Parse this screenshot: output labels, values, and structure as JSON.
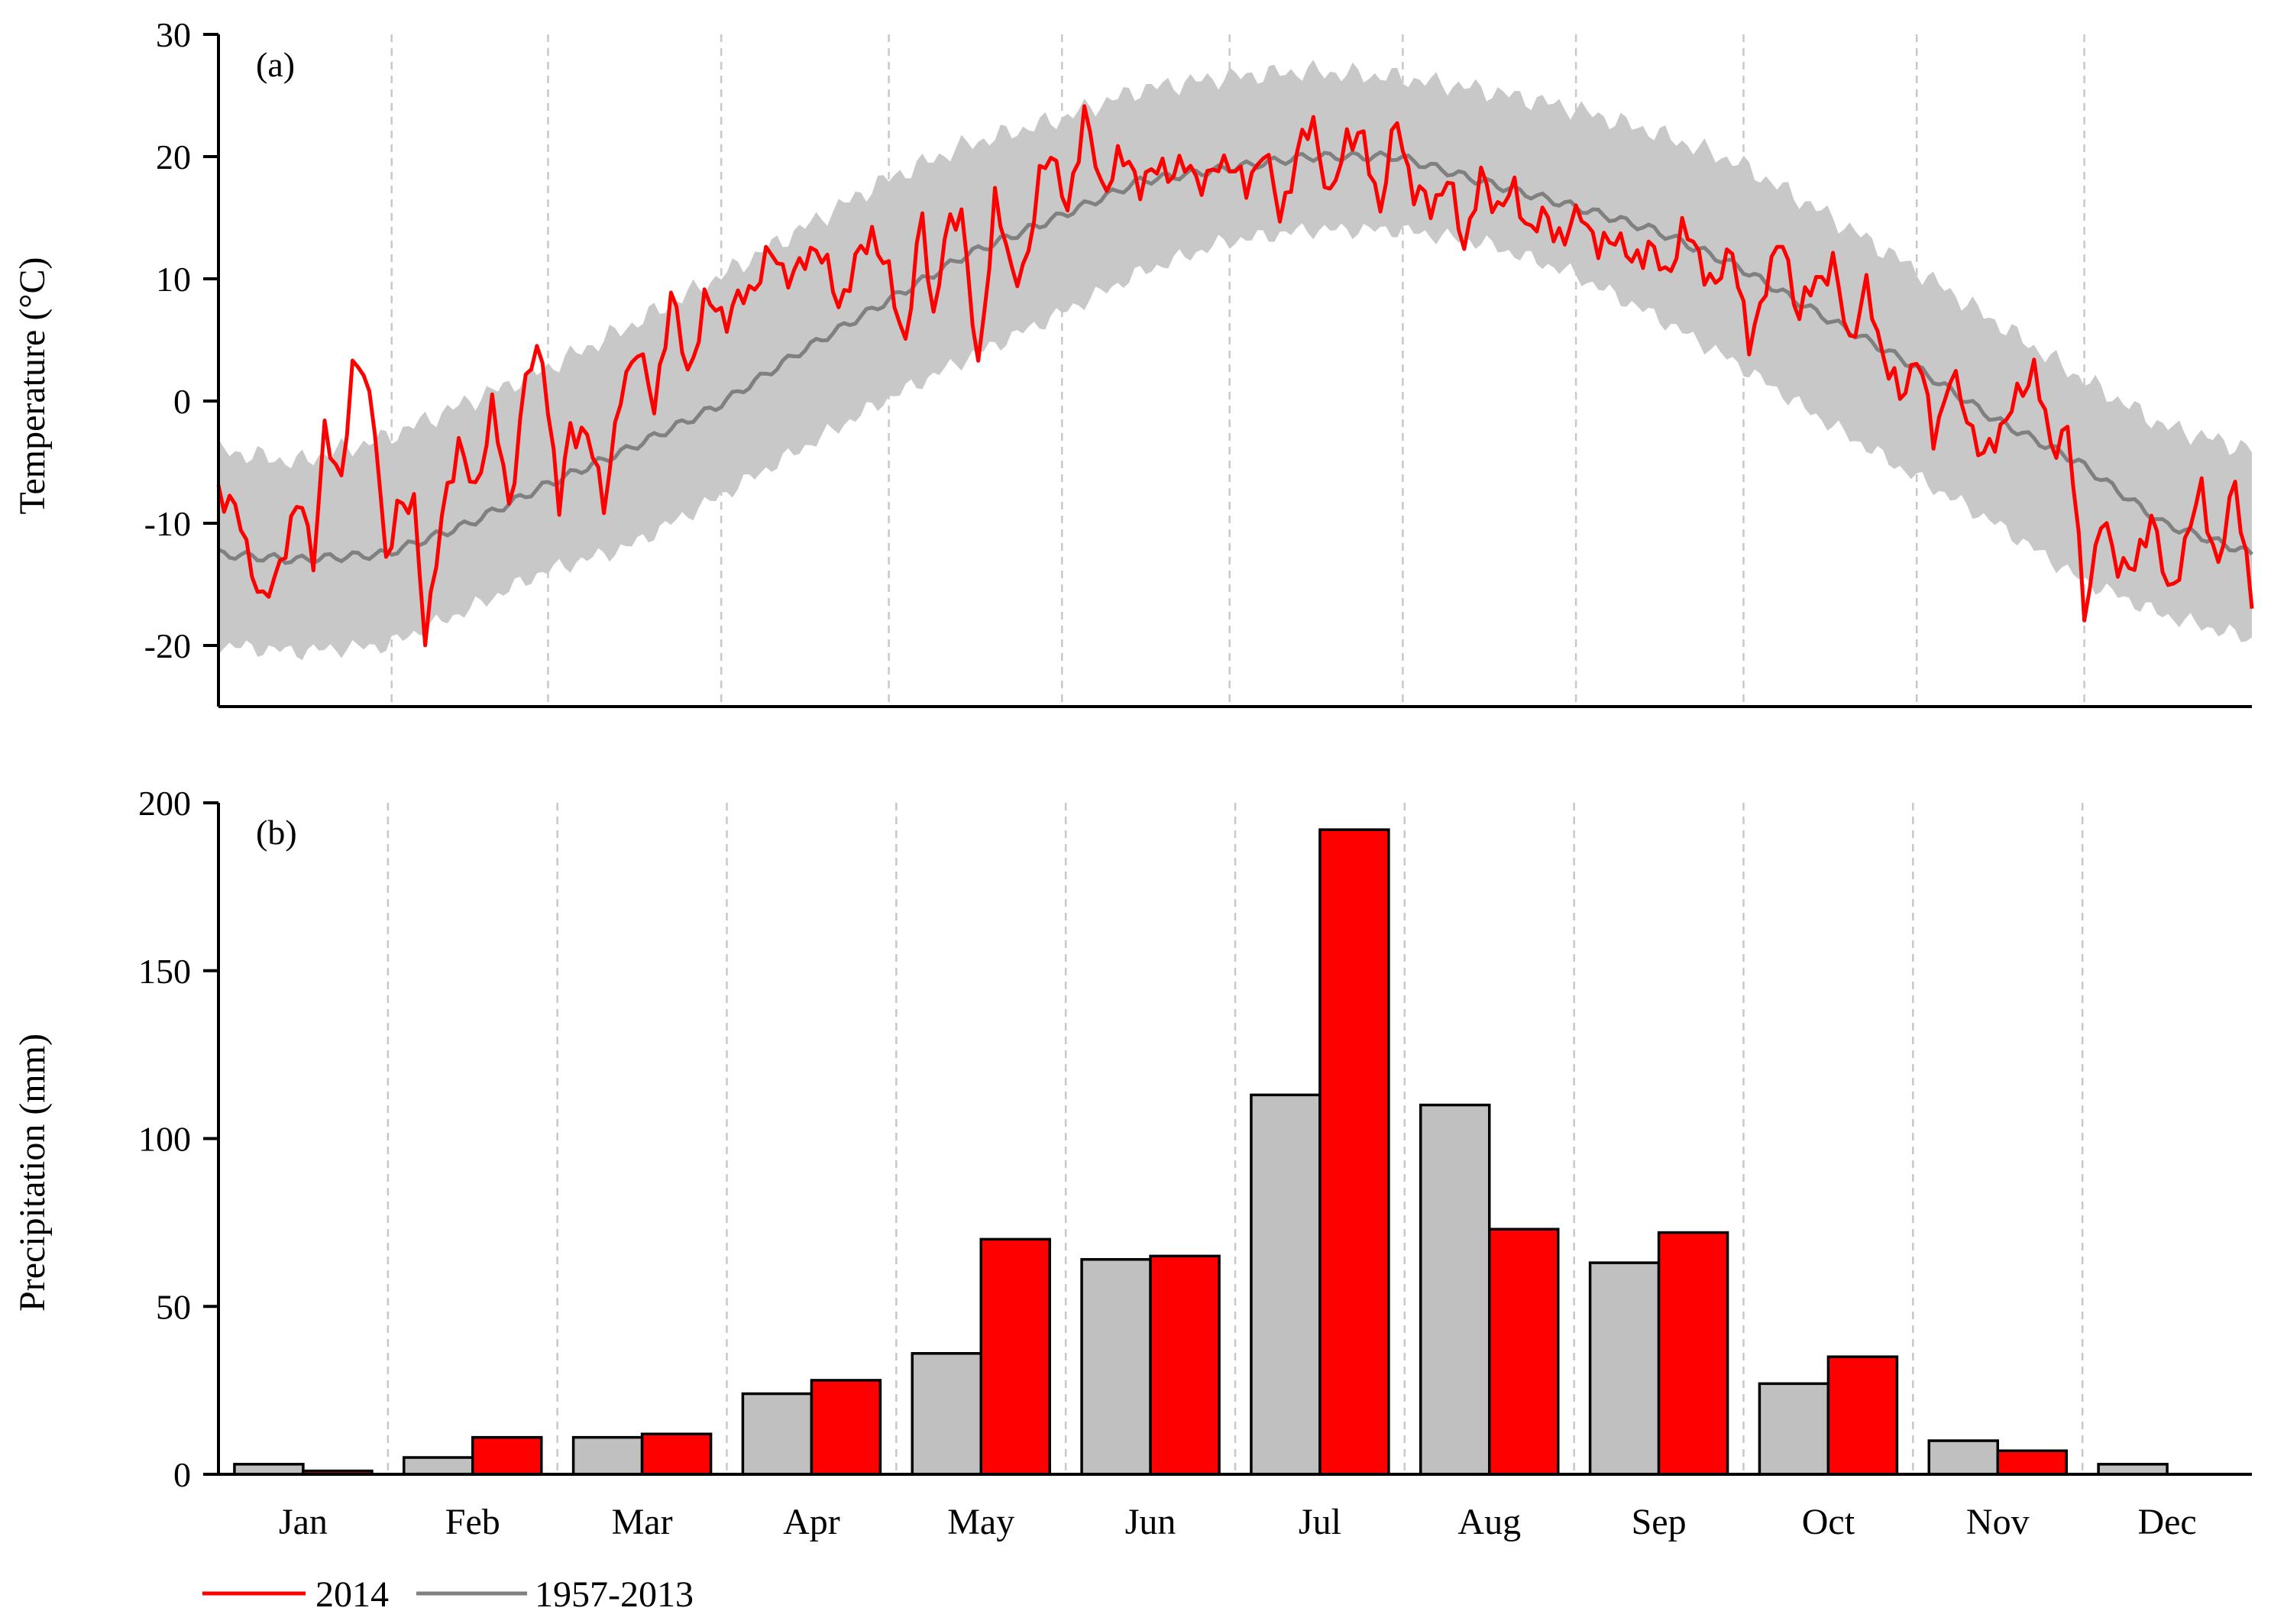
{
  "legend": [
    {
      "name": "2014",
      "color": "#ff0000"
    },
    {
      "name": "1957-2013",
      "color": "#808080"
    }
  ],
  "chart_data": [
    {
      "type": "line",
      "panel_label": "(a)",
      "title": "",
      "xlabel": "",
      "ylabel": "Temperature (°C)",
      "ylim": [
        -25,
        30
      ],
      "yticks": [
        -20,
        -10,
        0,
        10,
        20,
        30
      ],
      "xlim": [
        1,
        365
      ],
      "month_boundaries": [
        32,
        60,
        91,
        121,
        152,
        182,
        213,
        244,
        274,
        305,
        335
      ],
      "colors": {
        "band": "#c8c8c8",
        "mean": "#808080",
        "year": "#ff0000"
      },
      "climatology_anchors": {
        "description": "Daily mean 1957-2013 with shaded range (min-max)",
        "day": [
          1,
          15,
          31,
          46,
          59,
          74,
          90,
          105,
          120,
          135,
          151,
          166,
          181,
          196,
          212,
          227,
          243,
          258,
          273,
          288,
          304,
          319,
          334,
          349,
          365
        ],
        "mean": [
          -12.5,
          -13,
          -12.5,
          -10,
          -7,
          -4,
          -0.5,
          4,
          8,
          12,
          15,
          18,
          19,
          20,
          20,
          18,
          16,
          14,
          11,
          7,
          3,
          -1.5,
          -5,
          -10,
          -12.5
        ],
        "upper": [
          -4,
          -5,
          -3,
          0,
          2.5,
          6,
          10,
          14,
          18,
          21,
          23,
          25.5,
          26.5,
          27,
          26.5,
          25.5,
          24,
          22,
          19.5,
          15.5,
          11,
          6.5,
          2,
          -2,
          -4
        ],
        "lower": [
          -20,
          -20.5,
          -20,
          -17,
          -14,
          -12,
          -8,
          -4,
          0,
          3.5,
          7,
          10.5,
          13,
          14,
          14,
          13,
          10.5,
          7,
          3,
          -1.5,
          -6,
          -10,
          -14.5,
          -17.5,
          -19.5
        ]
      },
      "series_2014": {
        "name": "2014",
        "day": [
          1,
          5,
          9,
          12,
          16,
          18,
          20,
          23,
          25,
          27,
          29,
          31,
          33,
          36,
          38,
          41,
          44,
          47,
          50,
          53,
          56,
          59,
          62,
          64,
          67,
          70,
          73,
          76,
          79,
          82,
          85,
          88,
          92,
          96,
          100,
          104,
          108,
          112,
          115,
          118,
          121,
          124,
          127,
          129,
          131,
          134,
          137,
          140,
          143,
          146,
          148,
          150,
          153,
          156,
          159,
          162,
          166,
          170,
          174,
          178,
          182,
          185,
          188,
          191,
          194,
          197,
          200,
          203,
          206,
          209,
          212,
          215,
          218,
          221,
          224,
          227,
          230,
          233,
          236,
          239,
          242,
          245,
          248,
          251,
          254,
          257,
          260,
          263,
          266,
          269,
          272,
          275,
          278,
          281,
          284,
          287,
          290,
          293,
          296,
          299,
          302,
          305,
          308,
          311,
          314,
          317,
          320,
          323,
          326,
          329,
          332,
          335,
          338,
          341,
          344,
          347,
          350,
          353,
          356,
          359,
          362,
          365
        ],
        "values": [
          -7,
          -10,
          -17,
          -13,
          -8,
          -13,
          -3,
          -6,
          2,
          3,
          -2,
          -14,
          -8,
          -9,
          -19,
          -10,
          -3,
          -8,
          0,
          -9,
          2,
          4,
          -9,
          -2,
          -3,
          -8,
          0,
          5,
          -1,
          9,
          2,
          8,
          7,
          9,
          12,
          10,
          13,
          8,
          11,
          14,
          10,
          5,
          15,
          7,
          13,
          16,
          2,
          17,
          10,
          12,
          18,
          21,
          15,
          24,
          17,
          20,
          18,
          19,
          19,
          18,
          20,
          17,
          21,
          15,
          20,
          23,
          16,
          22,
          21,
          16,
          23,
          17,
          16,
          18,
          13,
          18,
          16,
          17,
          14,
          15,
          13,
          16,
          12,
          14,
          11,
          13,
          10,
          14,
          12,
          9,
          13,
          4,
          10,
          13,
          7,
          10,
          11,
          5,
          9,
          4,
          0,
          4,
          -3,
          2,
          -1,
          -5,
          -2,
          0,
          3,
          -4,
          -2,
          -17,
          -10,
          -13,
          -14,
          -9,
          -16,
          -12,
          -7,
          -14,
          -6,
          -17
        ]
      }
    },
    {
      "type": "bar",
      "panel_label": "(b)",
      "title": "",
      "xlabel": "",
      "ylabel": "Precipitation (mm)",
      "ylim": [
        0,
        200
      ],
      "yticks": [
        0,
        50,
        100,
        150,
        200
      ],
      "categories": [
        "Jan",
        "Feb",
        "Mar",
        "Apr",
        "May",
        "Jun",
        "Jul",
        "Aug",
        "Sep",
        "Oct",
        "Nov",
        "Dec"
      ],
      "series": [
        {
          "name": "1957-2013",
          "color": "#c0c0c0",
          "values": [
            3,
            5,
            11,
            24,
            36,
            64,
            113,
            110,
            63,
            27,
            10,
            3
          ]
        },
        {
          "name": "2014",
          "color": "#ff0000",
          "values": [
            1,
            11,
            12,
            28,
            70,
            65,
            192,
            73,
            72,
            35,
            7,
            0
          ]
        }
      ]
    }
  ]
}
